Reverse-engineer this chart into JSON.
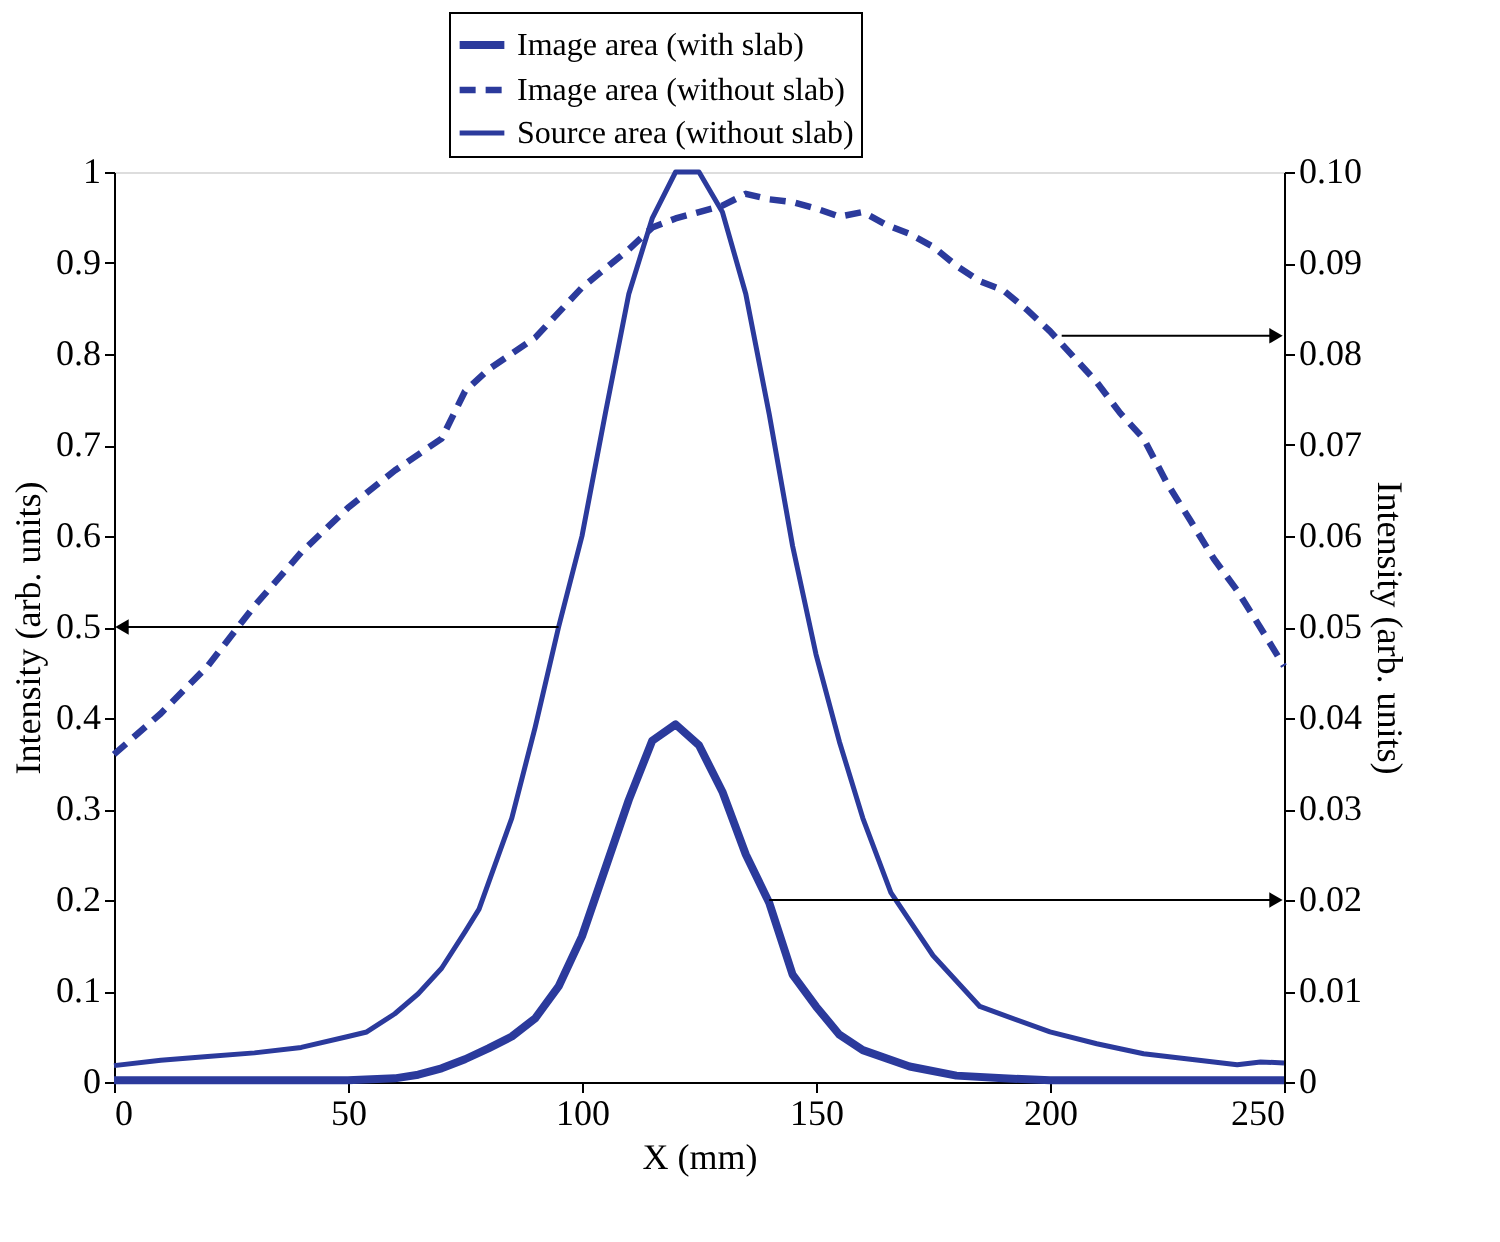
{
  "chart_data": {
    "type": "line",
    "xlabel": "X (mm)",
    "ylabel": "Intensity (arb. units)",
    "y2label": "Intensity (arb. units)",
    "xlim": [
      0,
      250
    ],
    "xticks": [
      0,
      50,
      100,
      150,
      200,
      250
    ],
    "ylim": [
      0,
      1
    ],
    "yticks": [
      0,
      0.1,
      0.2,
      0.3,
      0.4,
      0.5,
      0.6,
      0.7,
      0.8,
      0.9,
      1
    ],
    "y2lim": [
      0,
      0.1
    ],
    "y2ticks": [
      0,
      0.01,
      0.02,
      0.03,
      0.04,
      0.05,
      0.06,
      0.07,
      0.08,
      0.09,
      {
        "value": 0.1,
        "label": "0.10"
      }
    ],
    "grid": false,
    "legend": "top",
    "marker": "none",
    "series": [
      {
        "name": "Image area (with slab)",
        "color": "#2b3a9c",
        "axis": "y2",
        "line_style": "solid",
        "x": [
          0,
          50,
          60,
          65,
          70,
          75,
          80,
          85,
          90,
          95,
          100,
          105,
          110,
          115,
          120,
          125,
          130,
          135,
          140,
          145,
          150,
          155,
          160,
          170,
          180,
          190,
          200,
          250
        ],
        "values": [
          0.0002,
          0.0002,
          0.0004,
          0.0008,
          0.0015,
          0.0025,
          0.0037,
          0.005,
          0.007,
          0.0105,
          0.016,
          0.0235,
          0.031,
          0.0375,
          0.0393,
          0.037,
          0.0319,
          0.025,
          0.0197,
          0.0118,
          0.0083,
          0.0052,
          0.0035,
          0.0017,
          0.0007,
          0.0004,
          0.0002,
          0.0002
        ]
      },
      {
        "name": "Image area (without slab)",
        "color": "#2b3a9c",
        "axis": "y2",
        "line_style": "dashed",
        "x": [
          0,
          10,
          20,
          30,
          40,
          50,
          60,
          70,
          75,
          80,
          90,
          100,
          110,
          115,
          120,
          125,
          130,
          135,
          140,
          145,
          150,
          155,
          160,
          165,
          170,
          175,
          180,
          185,
          190,
          195,
          200,
          205,
          210,
          215,
          220,
          225,
          230,
          235,
          240,
          245,
          250
        ],
        "values": [
          0.036,
          0.0405,
          0.0457,
          0.0523,
          0.0582,
          0.0631,
          0.0672,
          0.0707,
          0.0759,
          0.0783,
          0.0818,
          0.0873,
          0.0915,
          0.0939,
          0.0949,
          0.0956,
          0.0963,
          0.0976,
          0.097,
          0.0967,
          0.096,
          0.0951,
          0.0956,
          0.0942,
          0.0932,
          0.0918,
          0.0897,
          0.088,
          0.087,
          0.0849,
          0.0825,
          0.0797,
          0.0769,
          0.0735,
          0.0707,
          0.0658,
          0.0617,
          0.0575,
          0.054,
          0.0499,
          0.0457
        ]
      },
      {
        "name": "Source area (without slab)",
        "color": "#2b3a9c",
        "axis": "y",
        "line_style": "solid",
        "x": [
          0,
          10,
          20,
          30,
          40,
          50,
          54,
          60,
          65,
          70,
          75,
          78,
          85,
          90,
          95,
          100,
          105,
          110,
          115,
          120,
          125,
          130,
          135,
          140,
          145,
          150,
          155,
          160,
          166,
          175,
          185,
          200,
          210,
          220,
          240,
          245,
          250
        ],
        "values": [
          0.018,
          0.024,
          0.028,
          0.032,
          0.038,
          0.05,
          0.055,
          0.075,
          0.097,
          0.125,
          0.165,
          0.19,
          0.29,
          0.39,
          0.5,
          0.6,
          0.735,
          0.866,
          0.949,
          1.0,
          1.0,
          0.956,
          0.866,
          0.734,
          0.589,
          0.47,
          0.374,
          0.29,
          0.208,
          0.139,
          0.083,
          0.055,
          0.042,
          0.031,
          0.019,
          0.022,
          0.021
        ]
      }
    ]
  }
}
